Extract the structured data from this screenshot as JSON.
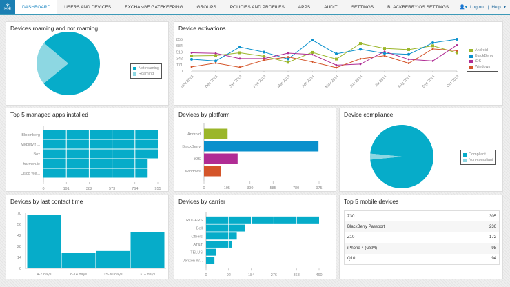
{
  "nav": {
    "tabs": [
      "DASHBOARD",
      "USERS AND DEVICES",
      "EXCHANGE GATEKEEPING",
      "GROUPS",
      "POLICIES AND PROFILES",
      "APPS",
      "AUDIT",
      "SETTINGS",
      "BLACKBERRY OS SETTINGS"
    ],
    "active": "DASHBOARD",
    "logout": "Log out",
    "help": "Help",
    "user_icon": "user-icon"
  },
  "colors": {
    "teal": "#06acc9",
    "light_teal": "#8dd7e2",
    "android": "#9bb62a",
    "blackberry": "#0a90cc",
    "ios": "#b02c94",
    "windows": "#d4552a"
  },
  "roaming": {
    "title": "Devices roaming and not roaming",
    "legend": [
      "Not roaming",
      "Roaming"
    ]
  },
  "activations": {
    "title": "Device activations"
  },
  "apps": {
    "title": "Top 5 managed apps installed"
  },
  "platform": {
    "title": "Devices by platform"
  },
  "compliance": {
    "title": "Device compliance",
    "legend": [
      "Compliant",
      "Non-compliant"
    ]
  },
  "contact": {
    "title": "Devices by last contact time"
  },
  "carrier": {
    "title": "Devices by carrier"
  },
  "mobile": {
    "title": "Top 5 mobile devices",
    "rows": [
      {
        "name": "Z30",
        "count": "305"
      },
      {
        "name": "BlackBerry Passport",
        "count": "236"
      },
      {
        "name": "Z10",
        "count": "172"
      },
      {
        "name": "iPhone 4 (GSM)",
        "count": "98"
      },
      {
        "name": "Q10",
        "count": "94"
      }
    ]
  },
  "chart_data": [
    {
      "type": "pie",
      "title": "Devices roaming and not roaming",
      "labels": [
        "Not roaming",
        "Roaming"
      ],
      "values": [
        78,
        22
      ],
      "legend": "right"
    },
    {
      "type": "line",
      "title": "Device activations",
      "categories": [
        "Nov 2013",
        "Dec 2013",
        "Jan 2014",
        "Feb 2014",
        "Mar 2014",
        "Apr 2014",
        "May 2014",
        "Jun 2014",
        "Jul 2014",
        "Aug 2014",
        "Sep 2014",
        "Oct 2014"
      ],
      "ylim": [
        0,
        855
      ],
      "yticks": [
        0,
        171,
        342,
        513,
        684,
        855
      ],
      "legend": "right",
      "series": [
        {
          "name": "Android",
          "values": [
            409,
            418,
            493,
            399,
            235,
            503,
            324,
            742,
            611,
            578,
            681,
            493
          ]
        },
        {
          "name": "BlackBerry",
          "values": [
            319,
            272,
            648,
            512,
            324,
            836,
            465,
            587,
            479,
            451,
            761,
            855
          ]
        },
        {
          "name": "iOS",
          "values": [
            493,
            479,
            338,
            338,
            484,
            446,
            160,
            188,
            526,
            315,
            272,
            700
          ]
        },
        {
          "name": "Windows",
          "values": [
            113,
            216,
            103,
            291,
            381,
            249,
            94,
            329,
            413,
            211,
            597,
            550
          ]
        }
      ]
    },
    {
      "type": "bar",
      "orientation": "horizontal",
      "title": "Top 5 managed apps installed",
      "categories": [
        "Bloomberg",
        "Mobility f ...",
        "Box",
        "harmon.ie",
        "Cisco We..."
      ],
      "values": [
        955,
        955,
        955,
        870,
        870
      ],
      "xlim": [
        0,
        955
      ],
      "xticks": [
        0,
        191,
        382,
        573,
        764,
        955
      ],
      "grid": true
    },
    {
      "type": "bar",
      "orientation": "horizontal",
      "title": "Devices by platform",
      "categories": [
        "Android",
        "BlackBerry",
        "iOS",
        "Windows"
      ],
      "values": [
        200,
        970,
        285,
        145
      ],
      "xlim": [
        0,
        975
      ],
      "xticks": [
        0,
        195,
        390,
        585,
        780,
        975
      ]
    },
    {
      "type": "pie",
      "title": "Device compliance",
      "labels": [
        "Compliant",
        "Non-compliant"
      ],
      "values": [
        97,
        3
      ],
      "legend": "right"
    },
    {
      "type": "bar",
      "title": "Devices by last contact time",
      "categories": [
        "4-7 days",
        "8-14 days",
        "15-30 days",
        "31+ days"
      ],
      "values": [
        68,
        20,
        22,
        46
      ],
      "ylim": [
        0,
        70
      ],
      "yticks": [
        0,
        14,
        28,
        42,
        56,
        70
      ]
    },
    {
      "type": "bar",
      "orientation": "horizontal",
      "title": "Devices by carrier",
      "categories": [
        "ROGERS",
        "Bell",
        "Others",
        "AT&T",
        "TELUS",
        "Verizon W..."
      ],
      "values": [
        460,
        158,
        125,
        105,
        40,
        34
      ],
      "xlim": [
        0,
        460
      ],
      "xticks": [
        0,
        92,
        184,
        276,
        368,
        460
      ],
      "grid": true
    }
  ]
}
